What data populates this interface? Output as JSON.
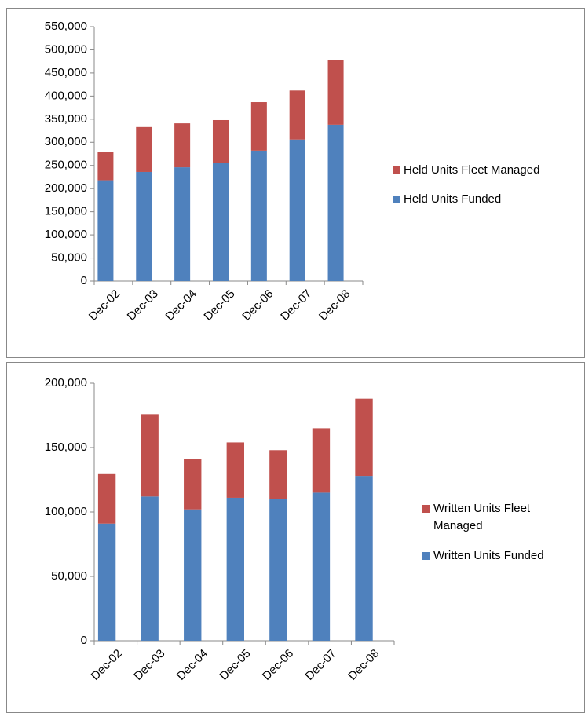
{
  "chart_data": [
    {
      "type": "stacked_bar",
      "categories": [
        "Dec-02",
        "Dec-03",
        "Dec-04",
        "Dec-05",
        "Dec-06",
        "Dec-07",
        "Dec-08"
      ],
      "series": [
        {
          "name": "Held Units Funded",
          "color": "#4f81bd",
          "values": [
            218000,
            236000,
            246000,
            255000,
            282000,
            306000,
            338000
          ]
        },
        {
          "name": "Held Units Fleet Managed",
          "color": "#c0504d",
          "values": [
            62000,
            97000,
            95000,
            93000,
            105000,
            106000,
            139000
          ]
        }
      ],
      "ylim": [
        0,
        550000
      ],
      "yticks": [
        0,
        {
          "value": 50000,
          "label": "50,000"
        },
        {
          "value": 100000,
          "label": "100,000"
        },
        {
          "value": 150000,
          "label": "150,000"
        },
        {
          "value": 200000,
          "label": "200,000"
        },
        {
          "value": 250000,
          "label": "250,000"
        },
        {
          "value": 300000,
          "label": "300,000"
        },
        {
          "value": 350000,
          "label": "350,000"
        },
        {
          "value": 400000,
          "label": "400,000"
        },
        {
          "value": 450000,
          "label": "450,000"
        },
        {
          "value": 500000,
          "label": "500,000"
        },
        {
          "value": 550000,
          "label": "550,000"
        }
      ],
      "grid": false,
      "legend": "right"
    },
    {
      "type": "stacked_bar",
      "categories": [
        "Dec-02",
        "Dec-03",
        "Dec-04",
        "Dec-05",
        "Dec-06",
        "Dec-07",
        "Dec-08"
      ],
      "series": [
        {
          "name": "Written Units Funded",
          "color": "#4f81bd",
          "values": [
            91000,
            112000,
            102000,
            111000,
            110000,
            115000,
            128000
          ]
        },
        {
          "name": "Written Units Fleet Managed",
          "color": "#c0504d",
          "values": [
            39000,
            64000,
            39000,
            43000,
            38000,
            50000,
            60000
          ]
        }
      ],
      "ylim": [
        0,
        200000
      ],
      "yticks": [
        0,
        {
          "value": 50000,
          "label": "50,000"
        },
        {
          "value": 100000,
          "label": "100,000"
        },
        {
          "value": 150000,
          "label": "150,000"
        },
        {
          "value": 200000,
          "label": "200,000"
        }
      ],
      "grid": false,
      "legend": "right"
    }
  ]
}
